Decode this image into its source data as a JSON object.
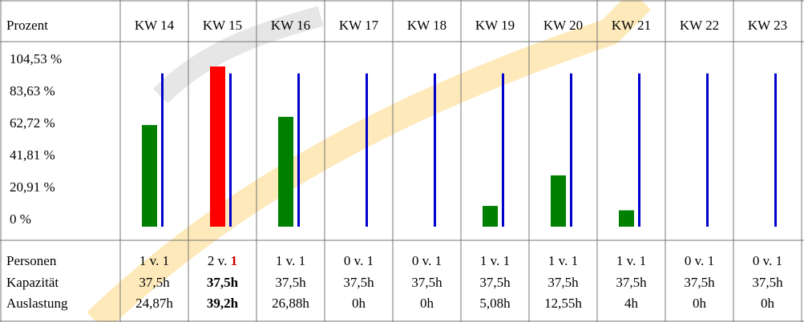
{
  "header": "Prozent",
  "row_labels": [
    "Personen",
    "Kapazität",
    "Auslastung"
  ],
  "chart_data": {
    "type": "bar",
    "categories": [
      "KW 14",
      "KW 15",
      "KW 16",
      "KW 17",
      "KW 18",
      "KW 19",
      "KW 20",
      "KW 21",
      "KW 22",
      "KW 23"
    ],
    "values": [
      66.32,
      104.53,
      71.68,
      0,
      0,
      13.55,
      33.47,
      10.67,
      0,
      0
    ],
    "colors": [
      "#008000",
      "#ff0000",
      "#008000",
      "#008000",
      "#008000",
      "#008000",
      "#008000",
      "#008000",
      "#008000",
      "#008000"
    ],
    "capacity": [
      100,
      100,
      100,
      100,
      100,
      100,
      100,
      100,
      100,
      100
    ],
    "capacity_color": "#0000cc",
    "ylim": [
      0,
      104.53
    ],
    "yticks": [
      {
        "value": 104.53,
        "label": "104,53 %"
      },
      {
        "value": 83.63,
        "label": "83,63 %"
      },
      {
        "value": 62.72,
        "label": "62,72 %"
      },
      {
        "value": 41.81,
        "label": "41,81 %"
      },
      {
        "value": 20.91,
        "label": "20,91 %"
      },
      {
        "value": 0,
        "label": "0 %"
      }
    ]
  },
  "table": {
    "personen": [
      "1 v. 1",
      "2 v. 1",
      "1 v. 1",
      "0 v. 1",
      "0 v. 1",
      "1 v. 1",
      "1 v. 1",
      "1 v. 1",
      "0 v. 1",
      "0 v. 1"
    ],
    "kapazitaet": [
      "37,5h",
      "37,5h",
      "37,5h",
      "37,5h",
      "37,5h",
      "37,5h",
      "37,5h",
      "37,5h",
      "37,5h",
      "37,5h"
    ],
    "auslastung": [
      "24,87h",
      "39,2h",
      "26,88h",
      "0h",
      "0h",
      "5,08h",
      "12,55h",
      "4h",
      "0h",
      "0h"
    ],
    "highlight": [
      false,
      true,
      false,
      false,
      false,
      false,
      false,
      false,
      false,
      false
    ]
  }
}
